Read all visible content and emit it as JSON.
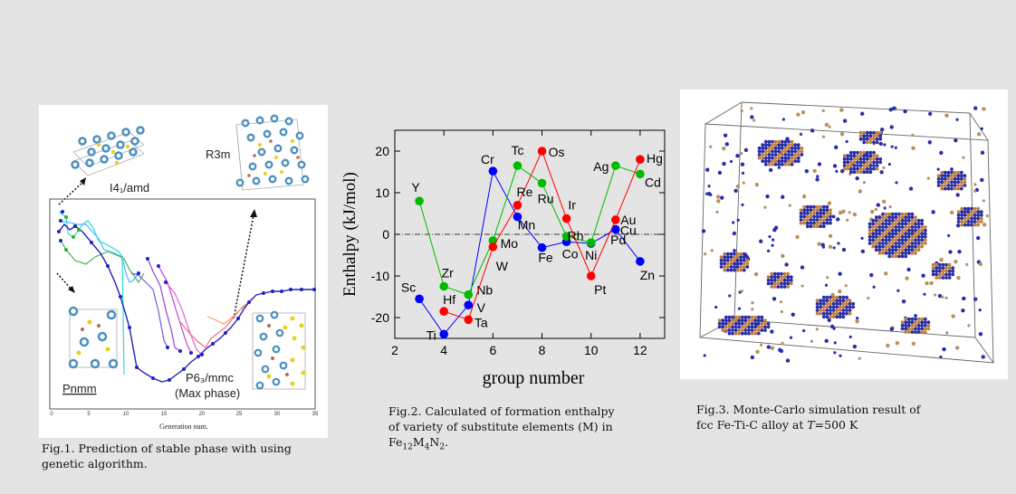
{
  "figures": [
    {
      "caption": "Fig.1. Prediction of stable phase with using genetic algorithm.",
      "caption_lines": [
        "Fig.1. Prediction of stable phase with using",
        "genetic algorithm."
      ],
      "labels": {
        "i41amd": "I4₁/amd",
        "r3m": "R3m",
        "pnmm": "Pnmm",
        "p63mmc": "P6₃/mmc",
        "max_phase": "(Max phase)"
      },
      "xlabel": "Generation num.",
      "x_ticks": [
        "0",
        "5",
        "10",
        "15",
        "20",
        "25",
        "30",
        "35"
      ]
    },
    {
      "caption": "Fig.2. Calculated of formation enthalpy of variety of substitute elements (M) in Fe12M4N2.",
      "caption_lines": [
        "Fig.2. Calculated of formation enthalpy",
        "of variety of substitute elements (M) in"
      ],
      "caption_formula": {
        "fe": "Fe",
        "fe_n": "12",
        "m": "M",
        "m_n": "4",
        "n": "N",
        "n_n": "2",
        "end": "."
      }
    },
    {
      "caption": "Fig.3. Monte-Carlo simulation result of fcc Fe-Ti-C alloy at T=500 K",
      "caption_lines": [
        "Fig.3. Monte-Carlo simulation result of"
      ],
      "caption_line2": {
        "pre": "fcc Fe-Ti-C alloy at ",
        "T": "T",
        "post": "=500 K"
      }
    }
  ],
  "chart_data": {
    "type": "line",
    "xlabel": "group number",
    "ylabel": "Enthalpy (kJ/mol)",
    "xlim": [
      2,
      13
    ],
    "ylim": [
      -25,
      25
    ],
    "x_ticks": [
      2,
      4,
      6,
      8,
      10,
      12
    ],
    "y_ticks": [
      20,
      10,
      0,
      -10,
      -20
    ],
    "reference_line": 0,
    "series": [
      {
        "color": "#0000ff",
        "points": [
          {
            "x": 3,
            "y": -15.5,
            "label": "Sc"
          },
          {
            "x": 4,
            "y": -24,
            "label": "Ti"
          },
          {
            "x": 5,
            "y": -17,
            "label": "V"
          },
          {
            "x": 6,
            "y": 15.2,
            "label": "Cr"
          },
          {
            "x": 7,
            "y": 4.2,
            "label": "Mn"
          },
          {
            "x": 8,
            "y": -3.2,
            "label": "Fe"
          },
          {
            "x": 9,
            "y": -1.8,
            "label": "Co"
          },
          {
            "x": 10,
            "y": -2.2,
            "label": "Ni"
          },
          {
            "x": 11,
            "y": 1.2,
            "label": "Cu"
          },
          {
            "x": 12,
            "y": -6.5,
            "label": "Zn"
          }
        ]
      },
      {
        "color": "#00bb00",
        "points": [
          {
            "x": 3,
            "y": 8,
            "label": "Y"
          },
          {
            "x": 4,
            "y": -12.5,
            "label": "Zr"
          },
          {
            "x": 5,
            "y": -14.5,
            "label": "Nb"
          },
          {
            "x": 6,
            "y": -1.5,
            "label": "Mo"
          },
          {
            "x": 7,
            "y": 16.5,
            "label": "Tc"
          },
          {
            "x": 8,
            "y": 12.3,
            "label": "Ru"
          },
          {
            "x": 9,
            "y": -0.5,
            "label": "Rh"
          },
          {
            "x": 10,
            "y": -2,
            "label": "Pd"
          },
          {
            "x": 11,
            "y": 16.5,
            "label": "Ag"
          },
          {
            "x": 12,
            "y": 14.5,
            "label": "Cd"
          }
        ]
      },
      {
        "color": "#ff0000",
        "points": [
          {
            "x": 4,
            "y": -18.5,
            "label": "Hf"
          },
          {
            "x": 5,
            "y": -20.5,
            "label": "Ta"
          },
          {
            "x": 6,
            "y": -3,
            "label": "W"
          },
          {
            "x": 7,
            "y": 7,
            "label": "Re"
          },
          {
            "x": 8,
            "y": 20,
            "label": "Os"
          },
          {
            "x": 9,
            "y": 3.8,
            "label": "Ir"
          },
          {
            "x": 10,
            "y": -10,
            "label": "Pt"
          },
          {
            "x": 11,
            "y": 3.5,
            "label": "Au"
          },
          {
            "x": 12,
            "y": 18,
            "label": "Hg"
          }
        ]
      }
    ]
  }
}
